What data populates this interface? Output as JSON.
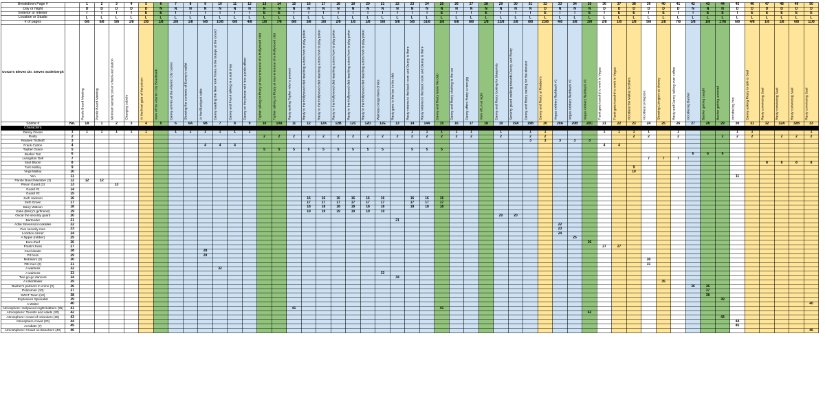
{
  "sheet": {
    "title": "Ocean's Eleven Dir. Steven Soderbergh",
    "row_labels": {
      "breakdown_page": "Breakdown Page #",
      "day_or_night": "Day or Night",
      "exterior_or_interior": "Exterior or Interior",
      "location_or_studio": "Location or Studio",
      "num_pages": "# of pages",
      "scene": "Scene #",
      "no": "No.",
      "characters": "Characters"
    },
    "colors": {
      "yellow": "#ffe599",
      "green": "#93c47d",
      "blue": "#cfe2f3",
      "white": "#ffffff",
      "characters_bar": "#000000",
      "gridline": "rgba(0,0,0,0.55)"
    },
    "columns": [
      {
        "page": "1",
        "day": "D",
        "ei": "I",
        "ls": "L",
        "pages": "6/8",
        "desc": "Parole Board Meeting",
        "scene": "1A",
        "color": "white",
        "cast": [
          1,
          12
        ]
      },
      {
        "page": "2",
        "day": "D",
        "ei": "I",
        "ls": "L",
        "pages": "6/8",
        "desc": "Parole Board Meeting",
        "scene": "1",
        "color": "white",
        "cast": [
          1,
          12
        ]
      },
      {
        "page": "3",
        "day": "D",
        "ei": "I",
        "ls": "L",
        "pages": "5/8",
        "desc": "Minimum security prison check-out station",
        "scene": "2",
        "color": "white",
        "cast": [
          1,
          13
        ]
      },
      {
        "page": "4",
        "day": "D",
        "ei": "I",
        "ls": "L",
        "pages": "1/8",
        "desc": "Changing cubicle",
        "scene": "3",
        "color": "white",
        "cast": [
          1
        ]
      },
      {
        "page": "5",
        "day": "D",
        "ei": "E",
        "ls": "L",
        "pages": "2/8",
        "desc": "At the front gate of the prison",
        "scene": "4",
        "color": "yellow",
        "cast": [
          1
        ]
      },
      {
        "page": "6",
        "day": "N",
        "ei": "E",
        "ls": "L",
        "pages": "1/8",
        "desc": "View of the Atlantic City Boardwalk",
        "scene": "5",
        "color": "green",
        "cast": []
      },
      {
        "page": "7",
        "day": "N",
        "ei": "I",
        "ls": "L",
        "pages": "2/8",
        "desc": "Danny arrives at the Atlantic City casino",
        "scene": "6",
        "color": "blue",
        "cast": [
          1
        ]
      },
      {
        "page": "8",
        "day": "N",
        "ei": "I",
        "ls": "L",
        "pages": "1/8",
        "desc": "Showing the contents of Danny's wallet",
        "scene": "6A",
        "color": "blue",
        "cast": [
          1
        ]
      },
      {
        "page": "9",
        "day": "N",
        "ei": "I",
        "ls": "L",
        "pages": "6/8",
        "desc": "At the Blackjack table",
        "scene": "6B",
        "color": "blue",
        "cast": [
          1,
          4,
          28,
          29
        ]
      },
      {
        "page": "10",
        "day": "N",
        "ei": "I",
        "ls": "L",
        "pages": "10/8",
        "desc": "Danny reading the New York Times in the lounge at the Grand",
        "scene": "7",
        "color": "blue",
        "cast": [
          1,
          4,
          32
        ]
      },
      {
        "page": "11",
        "day": "N",
        "ei": "I",
        "ls": "L",
        "pages": "6/8",
        "desc": "Danny and Frank talking in a sub shop",
        "scene": "8",
        "color": "blue",
        "cast": [
          1,
          4
        ]
      },
      {
        "page": "12",
        "day": "N",
        "ei": "I",
        "ls": "L",
        "pages": "4/8",
        "desc": "Danny on the phone with hos parole officer",
        "scene": "9",
        "color": "blue",
        "cast": [
          1
        ]
      },
      {
        "page": "13",
        "day": "N",
        "ei": "E",
        "ls": "L",
        "pages": "1/8",
        "desc": "Topher talking to Rusty at rear entrance of a Hollywood club",
        "scene": "10",
        "color": "green",
        "cast": [
          2,
          5
        ]
      },
      {
        "page": "14",
        "day": "N",
        "ei": "E",
        "ls": "L",
        "pages": "7/8",
        "desc": "Topher talking to Rusty at rear entrance of a Hollywood club",
        "scene": "10A",
        "color": "green",
        "cast": [
          2,
          5
        ]
      },
      {
        "page": "15",
        "day": "N",
        "ei": "I",
        "ls": "L",
        "pages": "8/8",
        "desc": "Rusty asking Topher who is present",
        "scene": "11",
        "color": "blue",
        "cast": [
          2,
          5,
          41
        ]
      },
      {
        "page": "16",
        "day": "N",
        "ei": "I",
        "ls": "L",
        "pages": "3/8",
        "desc": "Rusty in the Hollywood club teaching actors how to play poker",
        "scene": "12",
        "color": "blue",
        "cast": [
          2,
          5,
          16,
          17,
          18,
          19
        ]
      },
      {
        "page": "17",
        "day": "N",
        "ei": "I",
        "ls": "L",
        "pages": "3/8",
        "desc": "Rusty in the Hollywood club teaching actors how to play poker",
        "scene": "12A",
        "color": "blue",
        "cast": [
          2,
          5,
          16,
          17,
          18,
          19
        ]
      },
      {
        "page": "18",
        "day": "N",
        "ei": "I",
        "ls": "L",
        "pages": "2/8",
        "desc": "Rusty in the Hollywood club teaching actors how to play poker",
        "scene": "12B",
        "color": "blue",
        "cast": [
          2,
          5,
          16,
          17,
          18,
          19
        ]
      },
      {
        "page": "19",
        "day": "N",
        "ei": "I",
        "ls": "L",
        "pages": "1/8",
        "desc": "Rusty in the Hollywood club teaching actors how to play poker",
        "scene": "12C",
        "color": "blue",
        "cast": [
          2,
          5,
          16,
          17,
          18,
          19
        ]
      },
      {
        "page": "20",
        "day": "N",
        "ei": "I",
        "ls": "L",
        "pages": "1/8",
        "desc": "Rusty in the Hollywood club teaching actors how to play poker",
        "scene": "12D",
        "color": "blue",
        "cast": [
          2,
          5,
          16,
          17,
          18,
          19
        ]
      },
      {
        "page": "21",
        "day": "N",
        "ei": "I",
        "ls": "L",
        "pages": "5/8",
        "desc": "Waitress brings them drinks",
        "scene": "12E",
        "color": "blue",
        "cast": [
          2,
          5,
          16,
          17,
          18,
          19,
          33
        ]
      },
      {
        "page": "22",
        "day": "N",
        "ei": "I",
        "ls": "L",
        "pages": "5/8",
        "desc": "Rusty goes to the bar in the club",
        "scene": "13",
        "color": "blue",
        "cast": [
          2,
          21,
          34
        ]
      },
      {
        "page": "23",
        "day": "N",
        "ei": "I",
        "ls": "L",
        "pages": "5/8",
        "desc": "Rusty returns to the back room and Danny is there",
        "scene": "14",
        "color": "blue",
        "cast": [
          1,
          2,
          5,
          16,
          17,
          18
        ]
      },
      {
        "page": "24",
        "day": "N",
        "ei": "I",
        "ls": "L",
        "pages": "31/8",
        "desc": "Rusty returns to the back room and Danny is there",
        "scene": "14A",
        "color": "blue",
        "cast": [
          1,
          2,
          5,
          16,
          17,
          18
        ]
      },
      {
        "page": "25",
        "day": "N",
        "ei": "E",
        "ls": "L",
        "pages": "1/8",
        "desc": "Danny and Rusty leave the club",
        "scene": "15",
        "color": "green",
        "cast": [
          1,
          2,
          5,
          16,
          17,
          18,
          41
        ]
      },
      {
        "page": "26",
        "day": "N",
        "ei": "I",
        "ls": "L",
        "pages": "6/8",
        "desc": "Danny and Rusty chatting in the car",
        "scene": "16",
        "color": "blue",
        "cast": [
          1,
          2
        ]
      },
      {
        "page": "27",
        "day": "N",
        "ei": "I",
        "ls": "L",
        "pages": "8/8",
        "desc": "Danny offers Rusty a new gig",
        "scene": "17",
        "color": "blue",
        "cast": [
          1,
          2
        ]
      },
      {
        "page": "28",
        "day": "N",
        "ei": "E",
        "ls": "L",
        "pages": "1/8",
        "desc": "View of LA at night",
        "scene": "18",
        "color": "green",
        "cast": []
      },
      {
        "page": "29",
        "day": "N",
        "ei": "I",
        "ls": "L",
        "pages": "22/8",
        "desc": "Danny and Rusty looking for blueprints",
        "scene": "19",
        "color": "blue",
        "cast": [
          1,
          2,
          20
        ]
      },
      {
        "page": "30",
        "day": "N",
        "ei": "I",
        "ls": "L",
        "pages": "2/8",
        "desc": "Security guard walking towards Danny and Rusty",
        "scene": "19A",
        "color": "blue",
        "cast": [
          20
        ]
      },
      {
        "page": "31",
        "day": "N",
        "ei": "I",
        "ls": "L",
        "pages": "8/8",
        "desc": "Danny and Rusty waiting for the elevator",
        "scene": "19B",
        "color": "blue",
        "cast": [
          1,
          2,
          3
        ]
      },
      {
        "page": "32",
        "day": "D",
        "ei": "E",
        "ls": "L",
        "pages": "23/8",
        "desc": "Danny and Rusty at Reuben's",
        "scene": "20",
        "color": "yellow",
        "cast": [
          1,
          2,
          3
        ]
      },
      {
        "page": "33",
        "day": "N",
        "ei": "I",
        "ls": "L",
        "pages": "4/8",
        "desc": "Vegas robbery flashback #1",
        "scene": "20A",
        "color": "blue",
        "cast": [
          3,
          22,
          23,
          24
        ]
      },
      {
        "page": "34",
        "day": "N",
        "ei": "I",
        "ls": "L",
        "pages": "3/8",
        "desc": "Vegas robbery flashback #2",
        "scene": "20B",
        "color": "blue",
        "cast": [
          3,
          25
        ]
      },
      {
        "page": "35",
        "day": "N",
        "ei": "E",
        "ls": "L",
        "pages": "2/8",
        "desc": "Vegas robbery flashback #3",
        "scene": "20C",
        "color": "green",
        "cast": [
          3,
          26,
          42
        ]
      },
      {
        "page": "36",
        "day": "D",
        "ei": "I",
        "ls": "L",
        "pages": "2/8",
        "desc": "Frank gets transfrd to work in Vegas",
        "scene": "21",
        "color": "white",
        "cast": [
          1,
          4,
          27
        ]
      },
      {
        "page": "37",
        "day": "D",
        "ei": "E",
        "ls": "L",
        "pages": "1/8",
        "desc": "Frank gets transfrd to work in Vegas",
        "scene": "22",
        "color": "yellow",
        "cast": [
          1,
          4,
          27
        ]
      },
      {
        "page": "38",
        "day": "D",
        "ei": "E",
        "ls": "L",
        "pages": "1/8",
        "desc": "Introduce the Malloy brothers",
        "scene": "23",
        "color": "yellow",
        "cast": [
          1,
          2,
          9,
          10
        ]
      },
      {
        "page": "39",
        "day": "D",
        "ei": "I",
        "ls": "L",
        "pages": "5/8",
        "desc": "Introduce Livingston",
        "scene": "24",
        "color": "white",
        "cast": [
          1,
          2,
          7,
          30,
          31
        ]
      },
      {
        "page": "40",
        "day": "D",
        "ei": "E",
        "ls": "L",
        "pages": "1/8",
        "desc": "Showing Livington as clumsy",
        "scene": "25",
        "color": "yellow",
        "cast": [
          7,
          35
        ]
      },
      {
        "page": "41",
        "day": "D",
        "ei": "I",
        "ls": "L",
        "pages": "7/8",
        "desc": "Rusty and Danny talking over coffee",
        "scene": "26",
        "color": "white",
        "cast": [
          1,
          2,
          7
        ]
      },
      {
        "page": "42",
        "day": "N",
        "ei": "I",
        "ls": "L",
        "pages": "3/8",
        "desc": "Introducing Basher",
        "scene": "27",
        "color": "blue",
        "cast": [
          6,
          36
        ]
      },
      {
        "page": "43",
        "day": "N",
        "ei": "E",
        "ls": "L",
        "pages": "1/8",
        "desc": "Basher getting caught",
        "scene": "28",
        "color": "green",
        "cast": [
          6,
          36,
          37,
          38
        ]
      },
      {
        "page": "44",
        "day": "N",
        "ei": "E",
        "ls": "L",
        "pages": "17/8",
        "desc": "Basher getting arrested",
        "scene": "29",
        "color": "green",
        "cast": [
          2,
          6,
          39,
          43
        ]
      },
      {
        "page": "45",
        "day": "D",
        "ei": "I",
        "ls": "L",
        "pages": "6/8",
        "desc": "Introducing Yen",
        "scene": "30",
        "color": "white",
        "cast": [
          1,
          2,
          11,
          44,
          45
        ]
      },
      {
        "page": "46",
        "day": "D",
        "ei": "E",
        "ls": "L",
        "pages": "4/8",
        "desc": "Danny asking Rusty to talk to Saul",
        "scene": "31",
        "color": "yellow",
        "cast": [
          1,
          2
        ]
      },
      {
        "page": "47",
        "day": "D",
        "ei": "E",
        "ls": "L",
        "pages": "1/8",
        "desc": "Rusty convincing Saul",
        "scene": "32",
        "color": "yellow",
        "cast": [
          8
        ]
      },
      {
        "page": "48",
        "day": "D",
        "ei": "E",
        "ls": "L",
        "pages": "1/8",
        "desc": "Rusty convincing Saul",
        "scene": "32A",
        "color": "yellow",
        "cast": [
          2,
          8
        ]
      },
      {
        "page": "49",
        "day": "D",
        "ei": "E",
        "ls": "L",
        "pages": "6/8",
        "desc": "Rusty convincing Saul",
        "scene": "32B",
        "color": "yellow",
        "cast": [
          2,
          8
        ]
      },
      {
        "page": "50",
        "day": "D",
        "ei": "E",
        "ls": "L",
        "pages": "11/8",
        "desc": "Rusty convincing Saul",
        "scene": "33",
        "color": "yellow",
        "cast": [
          1,
          2,
          8,
          40,
          46
        ]
      }
    ],
    "characters": [
      {
        "no": 1,
        "name": "Danny Ocean"
      },
      {
        "no": 2,
        "name": "Rusty"
      },
      {
        "no": 3,
        "name": "Reuben Tishkoff"
      },
      {
        "no": 4,
        "name": "Frank Catton"
      },
      {
        "no": 5,
        "name": "Topher Grace"
      },
      {
        "no": 6,
        "name": "Basher Tarr"
      },
      {
        "no": 7,
        "name": "Livingston Dell"
      },
      {
        "no": 8,
        "name": "Saul Bloom"
      },
      {
        "no": 9,
        "name": "Turk Malloy"
      },
      {
        "no": 10,
        "name": "Virgil Malloy"
      },
      {
        "no": 11,
        "name": "Yen"
      },
      {
        "no": 12,
        "name": "Parole Board Member (3)"
      },
      {
        "no": 13,
        "name": "Prison Guard (2)"
      },
      {
        "no": 14,
        "name": "Guard #1"
      },
      {
        "no": 15,
        "name": "Guard #2"
      },
      {
        "no": 16,
        "name": "Josh Jackson"
      },
      {
        "no": 17,
        "name": "Seth Green"
      },
      {
        "no": 18,
        "name": "Barry Watson"
      },
      {
        "no": 19,
        "name": "Katie (Barry's girlfriend)"
      },
      {
        "no": 20,
        "name": "Oscar the security guard"
      },
      {
        "no": 21,
        "name": "Bartender"
      },
      {
        "no": 22,
        "name": "Adlai Stevenson lookalike"
      },
      {
        "no": 23,
        "name": "Five security men"
      },
      {
        "no": 24,
        "name": "Lockbox carrier"
      },
      {
        "no": 25,
        "name": "A hippie (robber)"
      },
      {
        "no": 26,
        "name": "Euro-thief"
      },
      {
        "no": 27,
        "name": "Frank's boss"
      },
      {
        "no": 28,
        "name": "Card dealer"
      },
      {
        "no": 29,
        "name": "Pit boss"
      },
      {
        "no": 30,
        "name": "Mobsters (2)"
      },
      {
        "no": 31,
        "name": "FBI men (2)"
      },
      {
        "no": 32,
        "name": "A waitress"
      },
      {
        "no": 33,
        "name": "A waitress"
      },
      {
        "no": 34,
        "name": "Two go-go dancers"
      },
      {
        "no": 35,
        "name": "A rollerblader"
      },
      {
        "no": 36,
        "name": "Basher's partners in crime (3)"
      },
      {
        "no": 37,
        "name": "Policemen (10)"
      },
      {
        "no": 38,
        "name": "SWAT Team (10)"
      },
      {
        "no": 39,
        "name": "Explosives Specialist"
      },
      {
        "no": 40,
        "name": "A Waiter"
      },
      {
        "no": 41,
        "name": "Atmosphere: Hollywood nightclubbers (35)"
      },
      {
        "no": 42,
        "name": "Atmosphere: Tourists and valets (20)"
      },
      {
        "no": 43,
        "name": "Atmosphere: crowd of onlookers (25)"
      },
      {
        "no": 44,
        "name": "Atmosphere crowd (20)"
      },
      {
        "no": 45,
        "name": "Acrobats (7)"
      },
      {
        "no": 46,
        "name": "Atmoshphere: Crowd on bleachers (40)"
      }
    ]
  }
}
